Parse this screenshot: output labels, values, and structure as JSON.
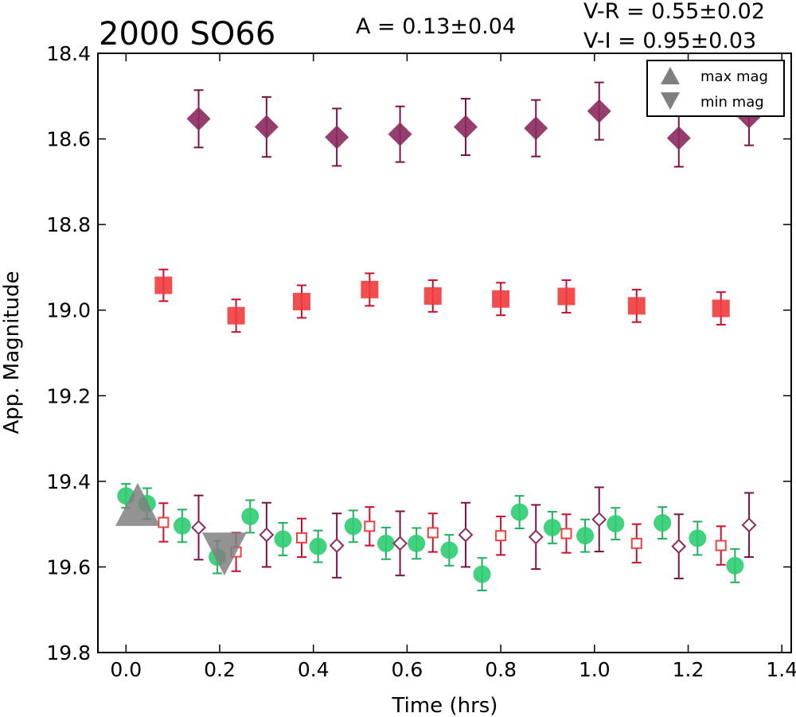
{
  "chart_data": {
    "type": "scatter",
    "title": "2000 SO66",
    "annotations": {
      "amplitude": "A  = 0.13±0.04",
      "v_minus_r": "V-R = 0.55±0.02",
      "v_minus_i": "V-I  = 0.95±0.03"
    },
    "xlabel": "Time (hrs)",
    "ylabel": "App. Magnitude",
    "xlim": [
      -0.06,
      1.42
    ],
    "ylim": [
      19.8,
      18.4
    ],
    "y_inverted": true,
    "xticks": [
      0.0,
      0.2,
      0.4,
      0.6,
      0.8,
      1.0,
      1.2,
      1.4
    ],
    "xtick_labels": [
      "0.0",
      "0.2",
      "0.4",
      "0.6",
      "0.8",
      "1.0",
      "1.2",
      "1.4"
    ],
    "yticks": [
      18.4,
      18.6,
      18.8,
      19.0,
      19.2,
      19.4,
      19.6,
      19.8
    ],
    "ytick_labels": [
      "18.4",
      "18.6",
      "18.8",
      "19.0",
      "19.2",
      "19.4",
      "19.6",
      "19.8"
    ],
    "grid": false,
    "legend_position": "top-right",
    "legend": [
      {
        "label": "max mag",
        "marker": "triangle-up",
        "color": "#808080"
      },
      {
        "label": "min mag",
        "marker": "triangle-down",
        "color": "#808080"
      }
    ],
    "series": [
      {
        "marker": "diamond-filled",
        "color": "#8b2a5e",
        "errcolor": "#7a1244",
        "points": [
          [
            0.155,
            18.553,
            0.067
          ],
          [
            0.3,
            18.572,
            0.07
          ],
          [
            0.45,
            18.596,
            0.067
          ],
          [
            0.585,
            18.589,
            0.065
          ],
          [
            0.725,
            18.572,
            0.066
          ],
          [
            0.875,
            18.575,
            0.066
          ],
          [
            1.01,
            18.535,
            0.067
          ],
          [
            1.18,
            18.598,
            0.067
          ],
          [
            1.33,
            18.548,
            0.067
          ]
        ]
      },
      {
        "marker": "square-filled",
        "color": "#f03c3c",
        "errcolor": "#c8102e",
        "points": [
          [
            0.08,
            18.942,
            0.037
          ],
          [
            0.235,
            19.013,
            0.038
          ],
          [
            0.375,
            18.98,
            0.038
          ],
          [
            0.52,
            18.952,
            0.038
          ],
          [
            0.655,
            18.967,
            0.037
          ],
          [
            0.8,
            18.974,
            0.038
          ],
          [
            0.94,
            18.968,
            0.038
          ],
          [
            1.09,
            18.99,
            0.038
          ],
          [
            1.27,
            18.996,
            0.038
          ]
        ]
      },
      {
        "marker": "circle-filled",
        "color": "#2ecc71",
        "errcolor": "#22b060",
        "points": [
          [
            0.0,
            19.434,
            0.028
          ],
          [
            0.045,
            19.452,
            0.036
          ],
          [
            0.12,
            19.504,
            0.038
          ],
          [
            0.195,
            19.577,
            0.038
          ],
          [
            0.265,
            19.482,
            0.038
          ],
          [
            0.335,
            19.535,
            0.038
          ],
          [
            0.41,
            19.552,
            0.037
          ],
          [
            0.485,
            19.505,
            0.037
          ],
          [
            0.555,
            19.545,
            0.037
          ],
          [
            0.62,
            19.545,
            0.036
          ],
          [
            0.69,
            19.561,
            0.036
          ],
          [
            0.76,
            19.617,
            0.038
          ],
          [
            0.84,
            19.472,
            0.038
          ],
          [
            0.91,
            19.508,
            0.037
          ],
          [
            0.98,
            19.527,
            0.038
          ],
          [
            1.045,
            19.499,
            0.037
          ],
          [
            1.145,
            19.497,
            0.037
          ],
          [
            1.22,
            19.533,
            0.039
          ],
          [
            1.3,
            19.597,
            0.039
          ]
        ]
      },
      {
        "marker": "square-open",
        "color": "#f04040",
        "errcolor": "#c8102e",
        "points": [
          [
            0.08,
            19.496,
            0.045
          ],
          [
            0.235,
            19.565,
            0.045
          ],
          [
            0.375,
            19.532,
            0.045
          ],
          [
            0.52,
            19.505,
            0.045
          ],
          [
            0.655,
            19.52,
            0.045
          ],
          [
            0.8,
            19.527,
            0.045
          ],
          [
            0.94,
            19.522,
            0.045
          ],
          [
            1.09,
            19.545,
            0.045
          ],
          [
            1.27,
            19.55,
            0.045
          ]
        ]
      },
      {
        "marker": "diamond-open",
        "color": "#8b2a5e",
        "errcolor": "#7a1244",
        "points": [
          [
            0.155,
            19.508,
            0.075
          ],
          [
            0.3,
            19.525,
            0.075
          ],
          [
            0.45,
            19.55,
            0.075
          ],
          [
            0.585,
            19.545,
            0.075
          ],
          [
            0.725,
            19.525,
            0.075
          ],
          [
            0.875,
            19.53,
            0.075
          ],
          [
            1.01,
            19.489,
            0.075
          ],
          [
            1.18,
            19.552,
            0.075
          ],
          [
            1.33,
            19.502,
            0.075
          ]
        ]
      }
    ],
    "extrema_markers": [
      {
        "type": "max",
        "x": 0.025,
        "y": 19.459,
        "color": "#808080"
      },
      {
        "type": "min",
        "x": 0.21,
        "y": 19.565,
        "color": "#808080"
      }
    ]
  }
}
